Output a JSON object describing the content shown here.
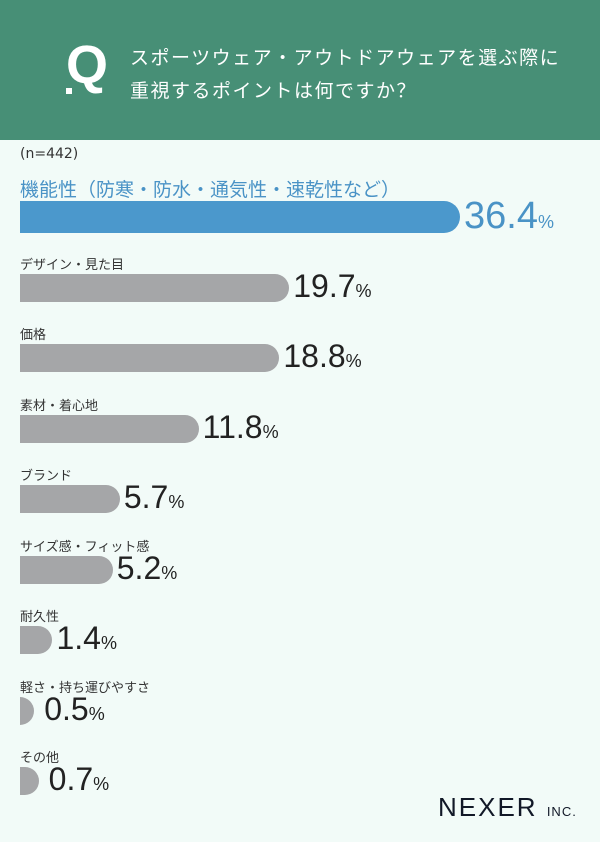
{
  "header": {
    "q_mark": "Q",
    "title_line1": "スポーツウェア・アウトドアウェアを選ぶ際に",
    "title_line2": "重視するポイントは何ですか？"
  },
  "colors": {
    "header": "#478f76",
    "highlight": "#4b98cc",
    "bar": "#a5a6a8",
    "background": "#f2fbf8"
  },
  "chart_data": {
    "type": "bar",
    "orientation": "horizontal",
    "sample_size": "(n=442)",
    "unit": "%",
    "categories": [
      "機能性（防寒・防水・通気性・速乾性など）",
      "デザイン・見た目",
      "価格",
      "素材・着心地",
      "ブランド",
      "サイズ感・フィット感",
      "耐久性",
      "軽さ・持ち運びやすさ",
      "その他"
    ],
    "values": [
      36.4,
      19.7,
      18.8,
      11.8,
      5.7,
      5.2,
      1.4,
      0.5,
      0.7
    ],
    "value_labels": [
      "36.4",
      "19.7",
      "18.8",
      "11.8",
      "5.7",
      "5.2",
      "1.4",
      "0.5",
      "0.7"
    ],
    "highlight_index": 0
  },
  "footer": {
    "logo": "NEXER",
    "logo_suffix": "INC."
  }
}
